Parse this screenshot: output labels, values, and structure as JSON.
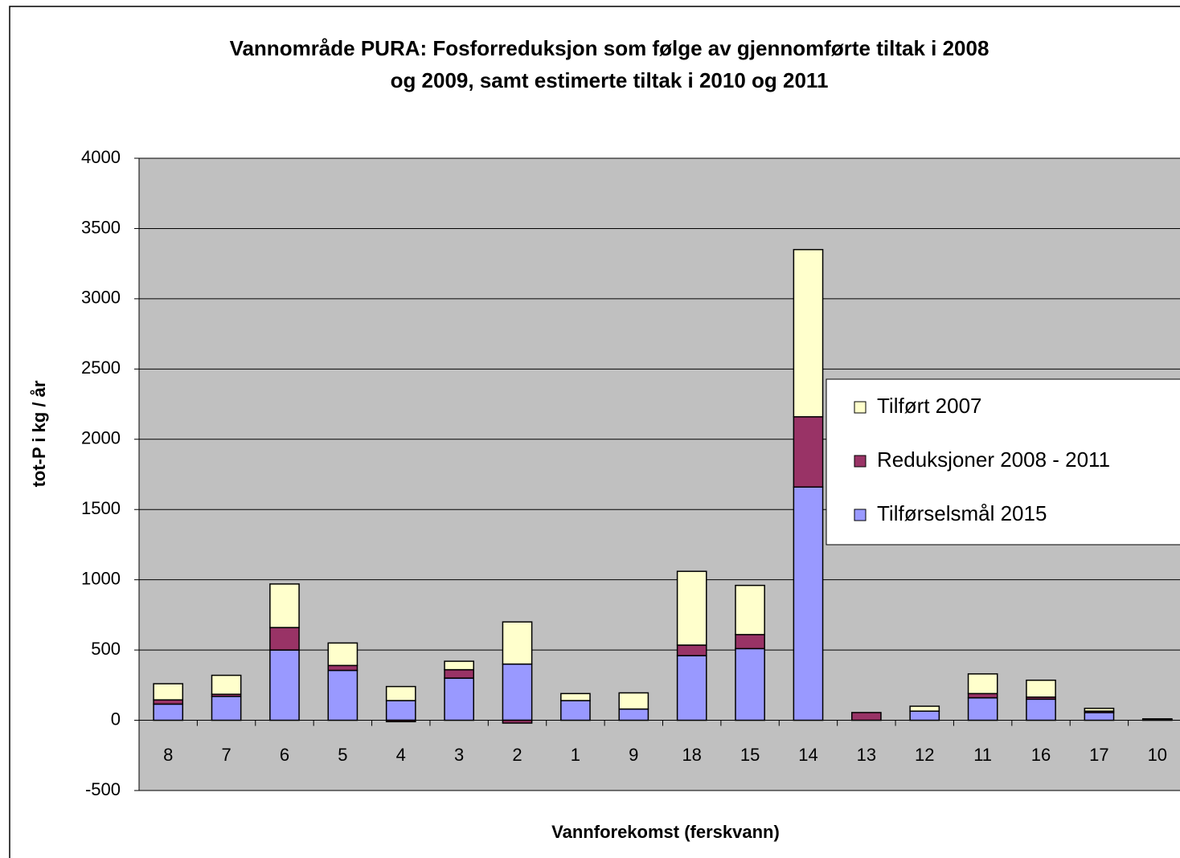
{
  "chart_data": {
    "type": "stacked_bar",
    "title": "Vannområde PURA: Fosforreduksjon som følge av gjennomførte tiltak  i 2008",
    "subtitle": "og 2009, samt estimerte tiltak i 2010 og 2011",
    "y_label": "tot-P   i   kg / år",
    "x_label": "Vannforekomst (ferskvann)",
    "categories": [
      "8",
      "7",
      "6",
      "5",
      "4",
      "3",
      "2",
      "1",
      "9",
      "18",
      "15",
      "14",
      "13",
      "12",
      "11",
      "16",
      "17",
      "10"
    ],
    "series": [
      {
        "name": "Tilførselsmål 2015",
        "color": "#9999ff",
        "values": [
          115,
          170,
          500,
          355,
          140,
          300,
          400,
          140,
          80,
          460,
          510,
          1660,
          0,
          65,
          160,
          150,
          55,
          5
        ]
      },
      {
        "name": "Reduksjoner 2008 - 2011",
        "color": "#993366",
        "values": [
          30,
          15,
          160,
          35,
          -10,
          60,
          -20,
          0,
          0,
          75,
          100,
          500,
          55,
          0,
          30,
          15,
          10,
          5
        ]
      },
      {
        "name": "Tilført 2007",
        "color": "#ffffcc",
        "values": [
          115,
          135,
          310,
          160,
          100,
          60,
          300,
          50,
          115,
          525,
          350,
          1190,
          0,
          35,
          140,
          120,
          20,
          0
        ]
      }
    ],
    "ylim": [
      -500,
      4000
    ],
    "yticks": [
      -500,
      0,
      500,
      1000,
      1500,
      2000,
      2500,
      3000,
      3500,
      4000
    ],
    "grid": true,
    "legend": "right"
  }
}
